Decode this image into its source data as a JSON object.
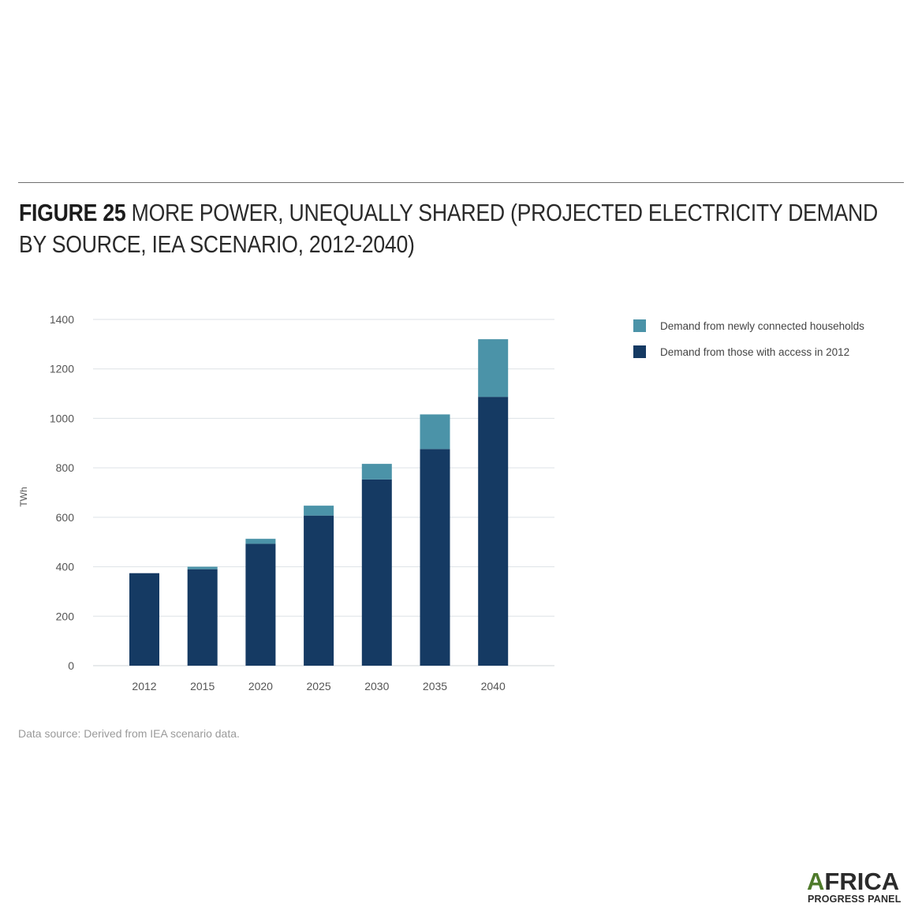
{
  "figure": {
    "label": "FIGURE 25",
    "title": "MORE POWER, UNEQUALLY SHARED (PROJECTED ELECTRICITY DEMAND BY SOURCE, IEA SCENARIO, 2012-2040)"
  },
  "source": "Data source: Derived from IEA scenario data.",
  "logo": {
    "first_letter": "A",
    "rest": "FRICA",
    "line2": "PROGRESS PANEL"
  },
  "colors": {
    "existing": "#153a63",
    "new": "#4b93a8",
    "grid": "#dde2e6",
    "axis": "#cfd5da",
    "text": "#555555"
  },
  "chart_data": {
    "type": "bar",
    "stacked": true,
    "categories": [
      "2012",
      "2015",
      "2020",
      "2025",
      "2030",
      "2035",
      "2040"
    ],
    "series": [
      {
        "name": "Demand from those with access in 2012",
        "values": [
          374,
          390,
          493,
          607,
          753,
          876,
          1087
        ]
      },
      {
        "name": "Demand from newly connected households",
        "values": [
          0,
          10,
          20,
          40,
          63,
          140,
          233
        ]
      }
    ],
    "legend_order": [
      "Demand from newly connected households",
      "Demand from those with access in 2012"
    ],
    "ylabel": "TWh",
    "xlabel": "",
    "ylim": [
      0,
      1400
    ],
    "yticks": [
      "0",
      "200",
      "400",
      "600",
      "800",
      "1000",
      "1200",
      "1400"
    ],
    "grid": true,
    "legend_position": "top-right"
  }
}
